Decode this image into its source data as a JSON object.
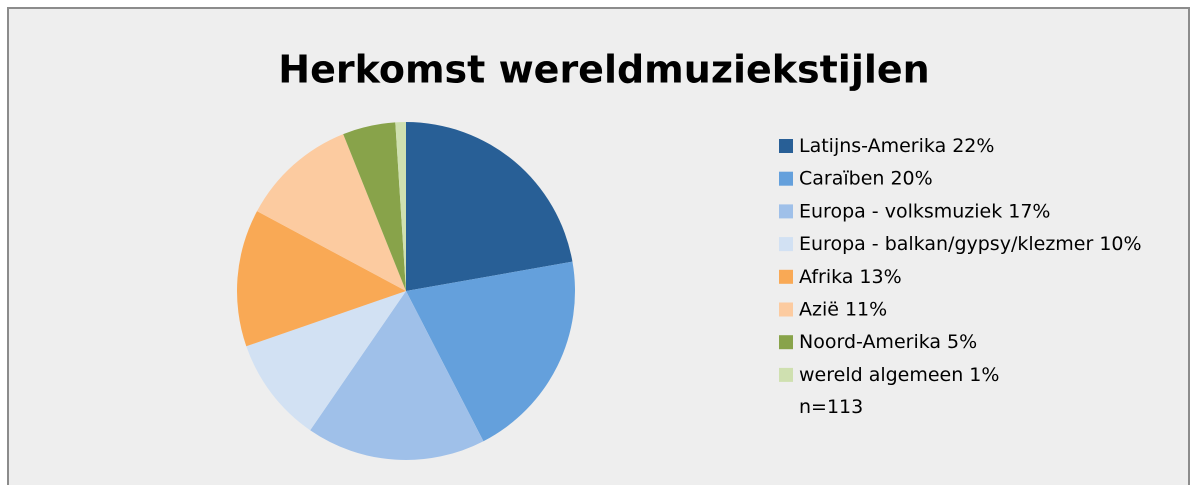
{
  "chart_data": {
    "type": "pie",
    "title": "Herkomst wereldmuziekstijlen",
    "categories": [
      "Latijns-Amerika",
      "Caraïben",
      "Europa - volksmuziek",
      "Europa - balkan/gypsy/klezmer",
      "Afrika",
      "Azië",
      "Noord-Amerika",
      "wereld algemeen"
    ],
    "values": [
      22,
      20,
      17,
      10,
      13,
      11,
      5,
      1
    ],
    "value_labels": [
      "22%",
      "20%",
      "17%",
      "10%",
      "13%",
      "11%",
      "5%",
      "1%"
    ],
    "colors": [
      "#285f96",
      "#64a0dc",
      "#9fc0e9",
      "#d2e1f3",
      "#f9a955",
      "#fccba0",
      "#88a34a",
      "#cfe0b0"
    ],
    "legend": "right",
    "annotation": "n=113"
  }
}
